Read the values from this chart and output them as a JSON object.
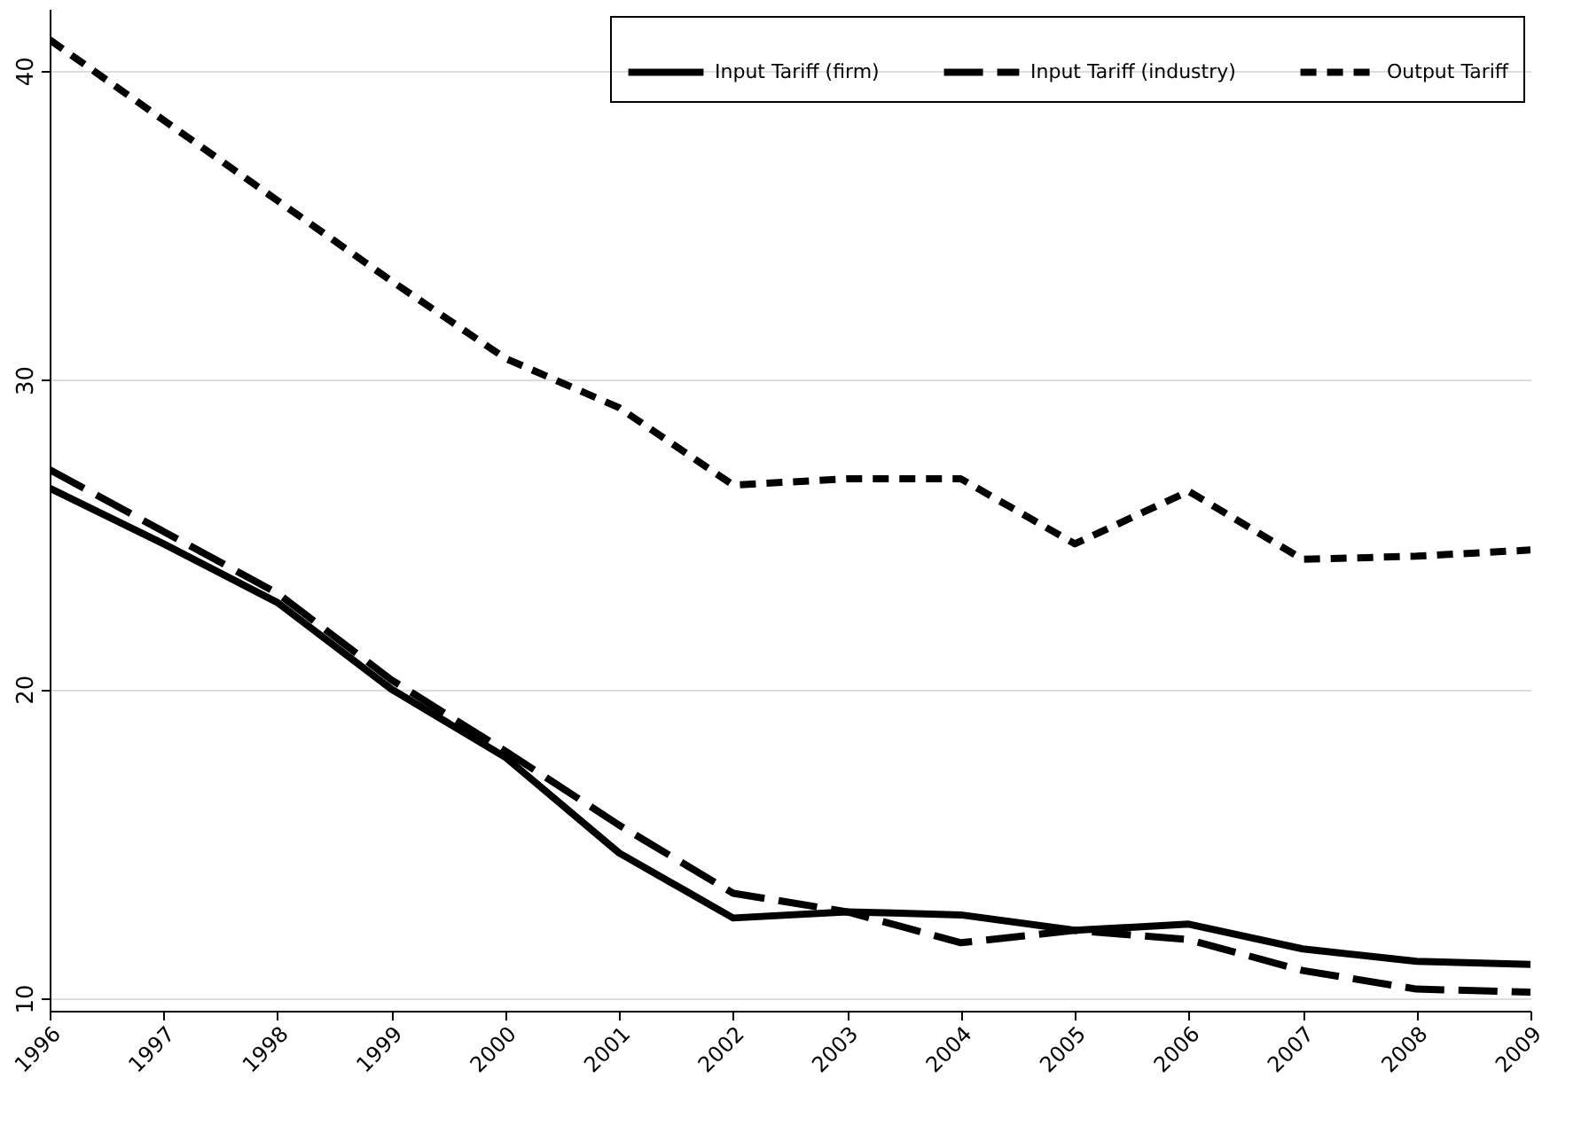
{
  "chart_data": {
    "type": "line",
    "x": [
      1996,
      1997,
      1998,
      1999,
      2000,
      2001,
      2002,
      2003,
      2004,
      2005,
      2006,
      2007,
      2008,
      2009
    ],
    "xlim": [
      1996,
      2009
    ],
    "xticks": [
      1996,
      1997,
      1998,
      1999,
      2000,
      2001,
      2002,
      2003,
      2004,
      2005,
      2006,
      2007,
      2008,
      2009
    ],
    "ylim": [
      9.6,
      42
    ],
    "yticks": [
      10,
      20,
      30,
      40
    ],
    "grid": "y",
    "legend": "top right",
    "marker": "none",
    "series": [
      {
        "name": "Input Tariff (firm)",
        "color": "#000000",
        "line_style": "solid",
        "values": [
          26.5,
          24.7,
          22.8,
          20.0,
          17.8,
          14.7,
          12.6,
          12.8,
          12.7,
          12.2,
          12.4,
          11.6,
          11.2,
          11.1
        ]
      },
      {
        "name": "Input Tariff (industry)",
        "color": "#000000",
        "line_style": "dashed",
        "values": [
          27.1,
          25.1,
          23.1,
          20.3,
          18.0,
          15.6,
          13.4,
          12.8,
          11.8,
          12.2,
          11.9,
          10.9,
          10.3,
          10.2
        ]
      },
      {
        "name": "Output Tariff",
        "color": "#000000",
        "line_style": "dotted",
        "values": [
          41.0,
          38.4,
          35.8,
          33.2,
          30.7,
          29.1,
          26.6,
          26.8,
          26.8,
          24.7,
          26.4,
          24.2,
          24.3,
          24.5
        ]
      }
    ]
  }
}
